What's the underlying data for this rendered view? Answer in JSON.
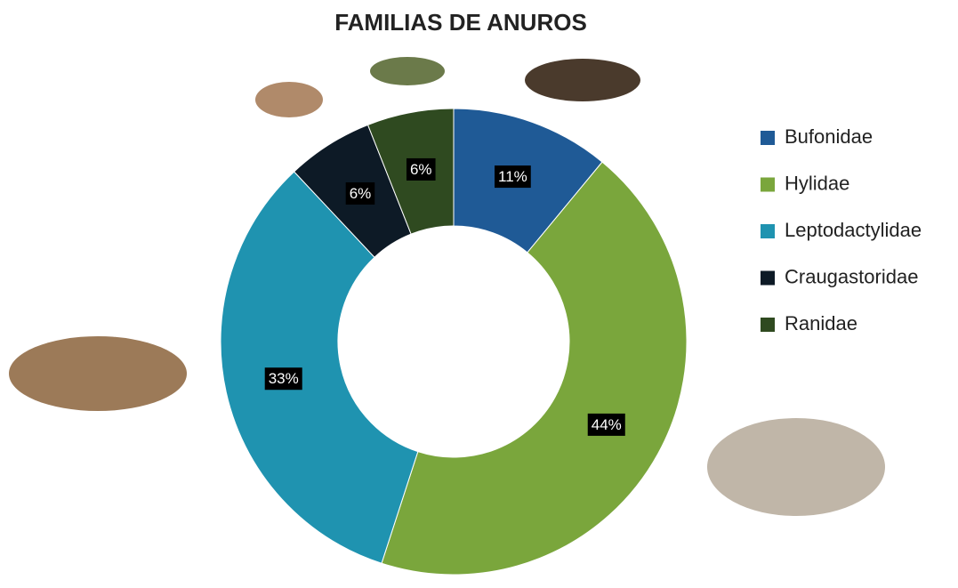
{
  "chart_data": {
    "type": "donut",
    "title": "FAMILIAS DE ANUROS",
    "categories": [
      "Bufonidae",
      "Hylidae",
      "Leptodactylidae",
      "Craugastoridae",
      "Ranidae"
    ],
    "values": [
      11,
      44,
      33,
      6,
      6
    ],
    "value_labels": [
      "11%",
      "44%",
      "33%",
      "6%",
      "6%"
    ],
    "colors": [
      "#1f5a96",
      "#7aa63c",
      "#1f93b0",
      "#0d1a26",
      "#2f4a20"
    ],
    "legend": "right"
  }
}
